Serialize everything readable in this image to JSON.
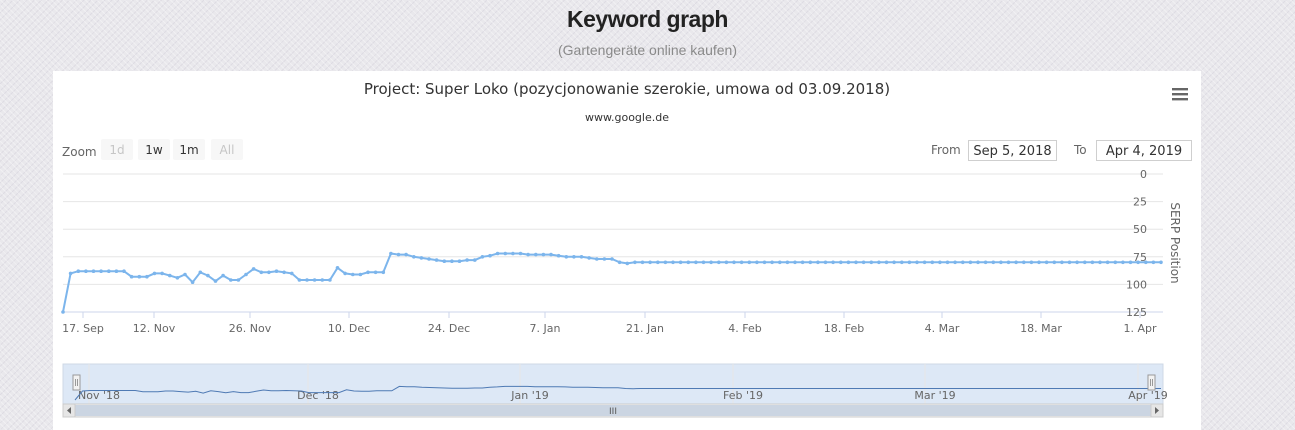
{
  "header": {
    "title": "Keyword graph",
    "subtitle": "(Gartengeräte online kaufen)"
  },
  "chart_data": {
    "type": "line",
    "title": "Project: Super Loko (pozycjonowanie szerokie, umowa od 03.09.2018)",
    "subtitle": "www.google.de",
    "ylabel": "SERP Position",
    "y_reversed": true,
    "ylim": [
      0,
      125
    ],
    "yticks": [
      0,
      25,
      50,
      75,
      100,
      125
    ],
    "x_tick_labels": [
      "17. Sep",
      "12. Nov",
      "26. Nov",
      "10. Dec",
      "24. Dec",
      "7. Jan",
      "21. Jan",
      "4. Feb",
      "18. Feb",
      "4. Mar",
      "18. Mar",
      "1. Apr"
    ],
    "grid": true,
    "series_color": "#7cb5ec",
    "series": [
      {
        "values": [
          125,
          90,
          88,
          88,
          88,
          88,
          88,
          88,
          88,
          93,
          93,
          93,
          90,
          90,
          92,
          94,
          91,
          98,
          89,
          92,
          97,
          92,
          96,
          96,
          91,
          86,
          89,
          89,
          88,
          89,
          90,
          96,
          96,
          96,
          96,
          96,
          85,
          90,
          91,
          91,
          89,
          89,
          89,
          72,
          73,
          73,
          75,
          76,
          77,
          78,
          79,
          79,
          79,
          78,
          78,
          75,
          74,
          72,
          72,
          72,
          72,
          73,
          73,
          73,
          73,
          74,
          75,
          75,
          75,
          76,
          77,
          77,
          77,
          80,
          81,
          80,
          80,
          80,
          80,
          80,
          80,
          80,
          80,
          80,
          80,
          80,
          80,
          80,
          80,
          80,
          80,
          80,
          80,
          80,
          80,
          80,
          80,
          80,
          80,
          80,
          80,
          80,
          80,
          80,
          80,
          80,
          80,
          80,
          80,
          80,
          80,
          80,
          80,
          80,
          80,
          80,
          80,
          80,
          80,
          80,
          80,
          80,
          80,
          80,
          80,
          80,
          80,
          80,
          80,
          80,
          80,
          80,
          80,
          80,
          80,
          80,
          80,
          80,
          80,
          80,
          80,
          80,
          80,
          80,
          80
        ],
        "note": ""
      }
    ]
  },
  "controls": {
    "zoom_label": "Zoom",
    "zoom_buttons": [
      "1d",
      "1w",
      "1m",
      "All"
    ],
    "from_label": "From",
    "from_value": "Sep 5, 2018",
    "to_label": "To",
    "to_value": "Apr 4, 2019"
  },
  "navigator": {
    "labels": [
      "Nov '18",
      "Dec '18",
      "Jan '19",
      "Feb '19",
      "Mar '19",
      "Apr '19"
    ],
    "scroll_grip": "III"
  }
}
